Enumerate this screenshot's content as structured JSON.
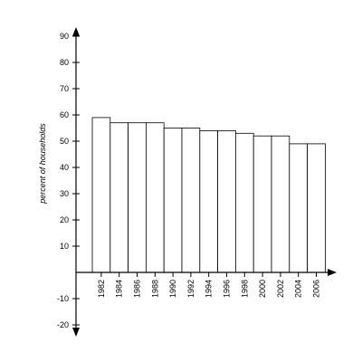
{
  "chart_data": {
    "type": "bar",
    "title": "",
    "xlabel": "",
    "ylabel": "percent of households",
    "categories": [
      "1982",
      "1984",
      "1986",
      "1988",
      "1990",
      "1992",
      "1994",
      "1996",
      "1998",
      "2000",
      "2002",
      "2004",
      "2006"
    ],
    "values": [
      59,
      57,
      57,
      57,
      55,
      55,
      54,
      54,
      53,
      52,
      52,
      49,
      49
    ],
    "ylim": [
      -20,
      90
    ],
    "yticks": [
      -20,
      -10,
      10,
      20,
      30,
      40,
      50,
      60,
      70,
      80,
      90
    ],
    "yticklabels": [
      "-20",
      "-10",
      "10",
      "20",
      "30",
      "40",
      "50",
      "60",
      "70",
      "80",
      "90"
    ],
    "grid": false,
    "colors": {
      "bar_fill": "#ffffff",
      "bar_stroke": "#000000",
      "axis": "#000000"
    }
  }
}
